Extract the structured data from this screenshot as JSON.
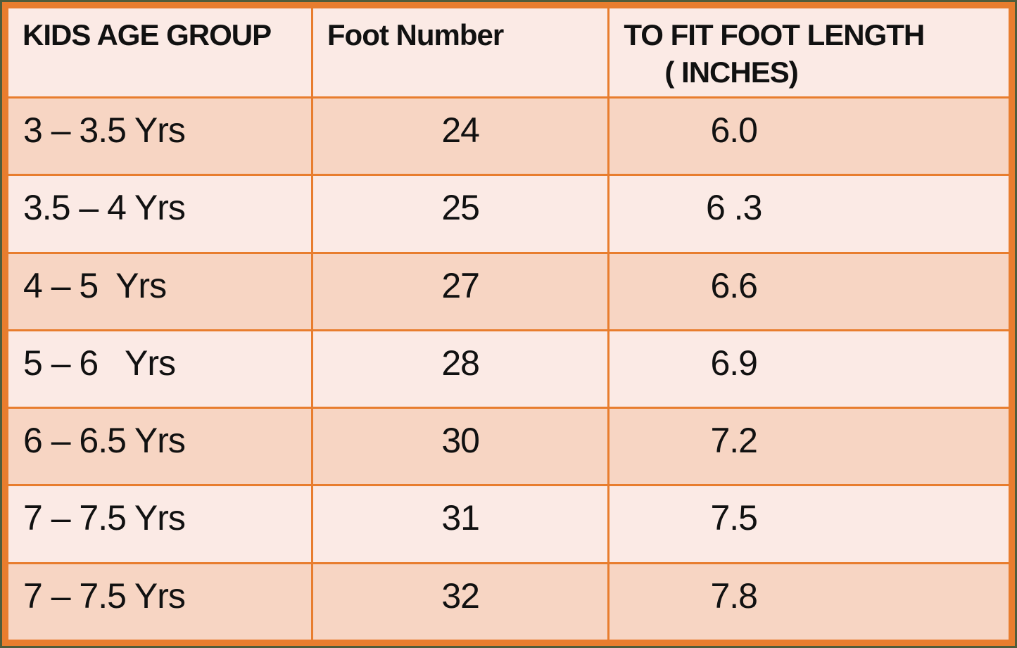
{
  "table": {
    "headers": {
      "age_group": "KIDS AGE GROUP",
      "foot_number": "Foot Number",
      "foot_length_line1": "TO FIT FOOT LENGTH",
      "foot_length_line2": "( INCHES)"
    },
    "rows": [
      {
        "age": "3 – 3.5 Yrs",
        "foot_number": "24",
        "length": "6.0"
      },
      {
        "age": "3.5 – 4 Yrs",
        "foot_number": "25",
        "length": "6 .3"
      },
      {
        "age": "4 – 5  Yrs",
        "foot_number": "27",
        "length": "6.6"
      },
      {
        "age": "5 – 6   Yrs",
        "foot_number": "28",
        "length": "6.9"
      },
      {
        "age": "6 – 6.5 Yrs",
        "foot_number": "30",
        "length": "7.2"
      },
      {
        "age": "7 – 7.5 Yrs",
        "foot_number": "31",
        "length": "7.5"
      },
      {
        "age": "7 – 7.5 Yrs",
        "foot_number": "32",
        "length": "7.8"
      }
    ]
  },
  "colors": {
    "border_orange": "#E87D2E",
    "row_light": "#FBEAE5",
    "row_dark": "#F7D5C3",
    "outer_edge_olive": "#4F5C3B",
    "text": "#111111"
  },
  "chart_data": {
    "type": "table",
    "columns": [
      "KIDS AGE GROUP",
      "Foot Number",
      "TO FIT FOOT LENGTH ( INCHES)"
    ],
    "rows": [
      [
        "3 – 3.5 Yrs",
        24,
        6.0
      ],
      [
        "3.5 – 4 Yrs",
        25,
        6.3
      ],
      [
        "4 – 5 Yrs",
        27,
        6.6
      ],
      [
        "5 – 6 Yrs",
        28,
        6.9
      ],
      [
        "6 – 6.5 Yrs",
        30,
        7.2
      ],
      [
        "7 – 7.5 Yrs",
        31,
        7.5
      ],
      [
        "7 – 7.5 Yrs",
        32,
        7.8
      ]
    ]
  }
}
